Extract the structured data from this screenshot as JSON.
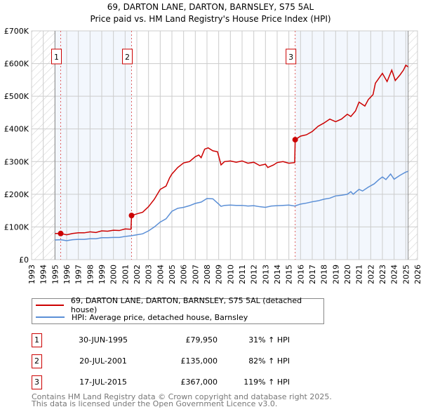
{
  "chart_data": {
    "type": "line",
    "title": "69, DARTON LANE, DARTON, BARNSLEY, S75 5AL",
    "subtitle": "Price paid vs. HM Land Registry's House Price Index (HPI)",
    "xlim": [
      1993,
      2026
    ],
    "ylim": [
      0,
      700000
    ],
    "y_ticks": [
      {
        "v": 0,
        "label": "£0"
      },
      {
        "v": 100000,
        "label": "£100K"
      },
      {
        "v": 200000,
        "label": "£200K"
      },
      {
        "v": 300000,
        "label": "£300K"
      },
      {
        "v": 400000,
        "label": "£400K"
      },
      {
        "v": 500000,
        "label": "£500K"
      },
      {
        "v": 600000,
        "label": "£600K"
      },
      {
        "v": 700000,
        "label": "£700K"
      }
    ],
    "x_ticks": [
      "1993",
      "1994",
      "1995",
      "1996",
      "1997",
      "1998",
      "1999",
      "2000",
      "2001",
      "2002",
      "2003",
      "2004",
      "2005",
      "2006",
      "2007",
      "2008",
      "2009",
      "2010",
      "2011",
      "2012",
      "2013",
      "2014",
      "2015",
      "2016",
      "2017",
      "2018",
      "2019",
      "2020",
      "2021",
      "2022",
      "2023",
      "2024",
      "2025",
      "2026"
    ],
    "data_range": [
      1995,
      2025.2
    ],
    "shaded_periods": [
      [
        1995,
        2001.55
      ],
      [
        2015.54,
        2025.2
      ]
    ],
    "series": [
      {
        "name": "69, DARTON LANE, DARTON, BARNSLEY, S75 5AL (detached house)",
        "color": "#cc0000",
        "points": [
          [
            1995.0,
            80
          ],
          [
            1995.5,
            80
          ],
          [
            1996,
            76
          ],
          [
            1996.5,
            80
          ],
          [
            1997,
            82
          ],
          [
            1997.5,
            82
          ],
          [
            1998,
            85
          ],
          [
            1998.5,
            83
          ],
          [
            1999,
            88
          ],
          [
            1999.5,
            87
          ],
          [
            2000,
            90
          ],
          [
            2000.5,
            89
          ],
          [
            2001,
            94
          ],
          [
            2001.5,
            93
          ],
          [
            2001.55,
            135
          ],
          [
            2002,
            140
          ],
          [
            2002.5,
            145
          ],
          [
            2003,
            162
          ],
          [
            2003.5,
            185
          ],
          [
            2004,
            215
          ],
          [
            2004.5,
            225
          ],
          [
            2004.8,
            250
          ],
          [
            2005,
            262
          ],
          [
            2005.5,
            282
          ],
          [
            2006,
            296
          ],
          [
            2006.5,
            300
          ],
          [
            2007,
            315
          ],
          [
            2007.3,
            320
          ],
          [
            2007.5,
            312
          ],
          [
            2007.8,
            338
          ],
          [
            2008.1,
            342
          ],
          [
            2008.5,
            333
          ],
          [
            2008.9,
            330
          ],
          [
            2009.2,
            290
          ],
          [
            2009.5,
            300
          ],
          [
            2010,
            302
          ],
          [
            2010.5,
            298
          ],
          [
            2011,
            302
          ],
          [
            2011.5,
            295
          ],
          [
            2012,
            298
          ],
          [
            2012.5,
            288
          ],
          [
            2013,
            292
          ],
          [
            2013.2,
            282
          ],
          [
            2013.7,
            290
          ],
          [
            2014,
            297
          ],
          [
            2014.5,
            300
          ],
          [
            2015,
            295
          ],
          [
            2015.5,
            297
          ],
          [
            2015.54,
            367
          ],
          [
            2016,
            378
          ],
          [
            2016.5,
            382
          ],
          [
            2017,
            392
          ],
          [
            2017.5,
            408
          ],
          [
            2018,
            418
          ],
          [
            2018.5,
            430
          ],
          [
            2019,
            422
          ],
          [
            2019.5,
            430
          ],
          [
            2020,
            445
          ],
          [
            2020.3,
            438
          ],
          [
            2020.7,
            455
          ],
          [
            2021,
            482
          ],
          [
            2021.5,
            470
          ],
          [
            2021.8,
            490
          ],
          [
            2022.2,
            505
          ],
          [
            2022.4,
            540
          ],
          [
            2022.8,
            560
          ],
          [
            2023,
            570
          ],
          [
            2023.4,
            545
          ],
          [
            2023.8,
            580
          ],
          [
            2024.1,
            548
          ],
          [
            2024.5,
            565
          ],
          [
            2024.8,
            580
          ],
          [
            2025,
            595
          ],
          [
            2025.2,
            590
          ]
        ]
      },
      {
        "name": "HPI: Average price, detached house, Barnsley",
        "color": "#5b8fd6",
        "points": [
          [
            1995.0,
            60
          ],
          [
            1995.5,
            61
          ],
          [
            1996,
            58
          ],
          [
            1996.5,
            61
          ],
          [
            1997,
            62
          ],
          [
            1997.5,
            62
          ],
          [
            1998,
            64
          ],
          [
            1998.5,
            64
          ],
          [
            1999,
            67
          ],
          [
            1999.5,
            67
          ],
          [
            2000,
            68
          ],
          [
            2000.5,
            68
          ],
          [
            2001,
            71
          ],
          [
            2001.5,
            73
          ],
          [
            2002,
            76
          ],
          [
            2002.5,
            79
          ],
          [
            2003,
            88
          ],
          [
            2003.5,
            100
          ],
          [
            2004,
            115
          ],
          [
            2004.5,
            125
          ],
          [
            2005,
            148
          ],
          [
            2005.5,
            157
          ],
          [
            2006,
            160
          ],
          [
            2006.5,
            165
          ],
          [
            2007,
            172
          ],
          [
            2007.5,
            176
          ],
          [
            2008,
            187
          ],
          [
            2008.5,
            186
          ],
          [
            2009,
            170
          ],
          [
            2009.2,
            163
          ],
          [
            2009.5,
            166
          ],
          [
            2010,
            167
          ],
          [
            2010.5,
            166
          ],
          [
            2011,
            166
          ],
          [
            2011.5,
            164
          ],
          [
            2012,
            165
          ],
          [
            2012.5,
            162
          ],
          [
            2013,
            160
          ],
          [
            2013.5,
            164
          ],
          [
            2014,
            165
          ],
          [
            2014.5,
            166
          ],
          [
            2015,
            167
          ],
          [
            2015.5,
            164
          ],
          [
            2016,
            170
          ],
          [
            2016.5,
            173
          ],
          [
            2017,
            177
          ],
          [
            2017.5,
            180
          ],
          [
            2018,
            185
          ],
          [
            2018.5,
            188
          ],
          [
            2019,
            195
          ],
          [
            2019.5,
            197
          ],
          [
            2020,
            200
          ],
          [
            2020.3,
            208
          ],
          [
            2020.5,
            200
          ],
          [
            2021,
            215
          ],
          [
            2021.3,
            210
          ],
          [
            2021.8,
            222
          ],
          [
            2022.3,
            232
          ],
          [
            2022.7,
            245
          ],
          [
            2023,
            253
          ],
          [
            2023.3,
            245
          ],
          [
            2023.7,
            262
          ],
          [
            2024,
            246
          ],
          [
            2024.5,
            258
          ],
          [
            2025,
            268
          ],
          [
            2025.2,
            270
          ]
        ]
      }
    ],
    "sales": [
      {
        "id": "1",
        "x": 1995.49,
        "value": 79950
      },
      {
        "id": "2",
        "x": 2001.55,
        "value": 135000
      },
      {
        "id": "3",
        "x": 2015.54,
        "value": 367000
      }
    ]
  },
  "legend": {
    "property": "69, DARTON LANE, DARTON, BARNSLEY, S75 5AL (detached house)",
    "hpi": "HPI: Average price, detached house, Barnsley"
  },
  "table": [
    {
      "id": "1",
      "date": "30-JUN-1995",
      "price": "£79,950",
      "hpi": "31% ↑ HPI"
    },
    {
      "id": "2",
      "date": "20-JUL-2001",
      "price": "£135,000",
      "hpi": "82% ↑ HPI"
    },
    {
      "id": "3",
      "date": "17-JUL-2015",
      "price": "£367,000",
      "hpi": "119% ↑ HPI"
    }
  ],
  "footer": {
    "line1": "Contains HM Land Registry data © Crown copyright and database right 2025.",
    "line2": "This data is licensed under the Open Government Licence v3.0."
  }
}
